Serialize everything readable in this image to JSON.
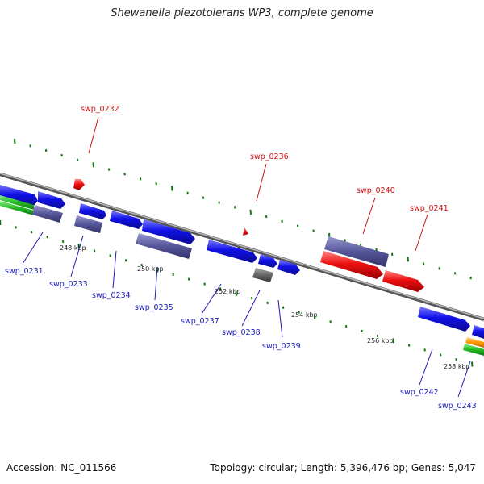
{
  "title": "Shewanella piezotolerans WP3, complete genome",
  "footer": {
    "accession": "Accession: NC_011566",
    "summary": "Topology: circular; Length: 5,396,476 bp; Genes: 5,047"
  },
  "colors": {
    "forward_gene": "#1010e8",
    "reverse_gene": "#5050a0",
    "red_gene": "#ee1111",
    "gray_gene": "#666666",
    "green_track": "#22bb22",
    "orange_track": "#ff9900",
    "tick": "#117711",
    "backbone": "#888888",
    "label_blue": "#1a1ab8",
    "label_red": "#cc1111"
  },
  "scale_labels": [
    "248 kbp",
    "250 kbp",
    "252 kbp",
    "254 kbp",
    "256 kbp",
    "258 kbp"
  ],
  "genes": [
    {
      "id": "swp_0231",
      "color": "blue_label"
    },
    {
      "id": "swp_0232",
      "color": "red_label"
    },
    {
      "id": "swp_0233",
      "color": "blue_label"
    },
    {
      "id": "swp_0234",
      "color": "blue_label"
    },
    {
      "id": "swp_0235",
      "color": "blue_label"
    },
    {
      "id": "swp_0236",
      "color": "red_label"
    },
    {
      "id": "swp_0237",
      "color": "blue_label"
    },
    {
      "id": "swp_0238",
      "color": "blue_label"
    },
    {
      "id": "swp_0239",
      "color": "blue_label"
    },
    {
      "id": "swp_0240",
      "color": "red_label"
    },
    {
      "id": "swp_0241",
      "color": "red_label"
    },
    {
      "id": "swp_0242",
      "color": "blue_label"
    },
    {
      "id": "swp_0243",
      "color": "blue_label"
    }
  ]
}
